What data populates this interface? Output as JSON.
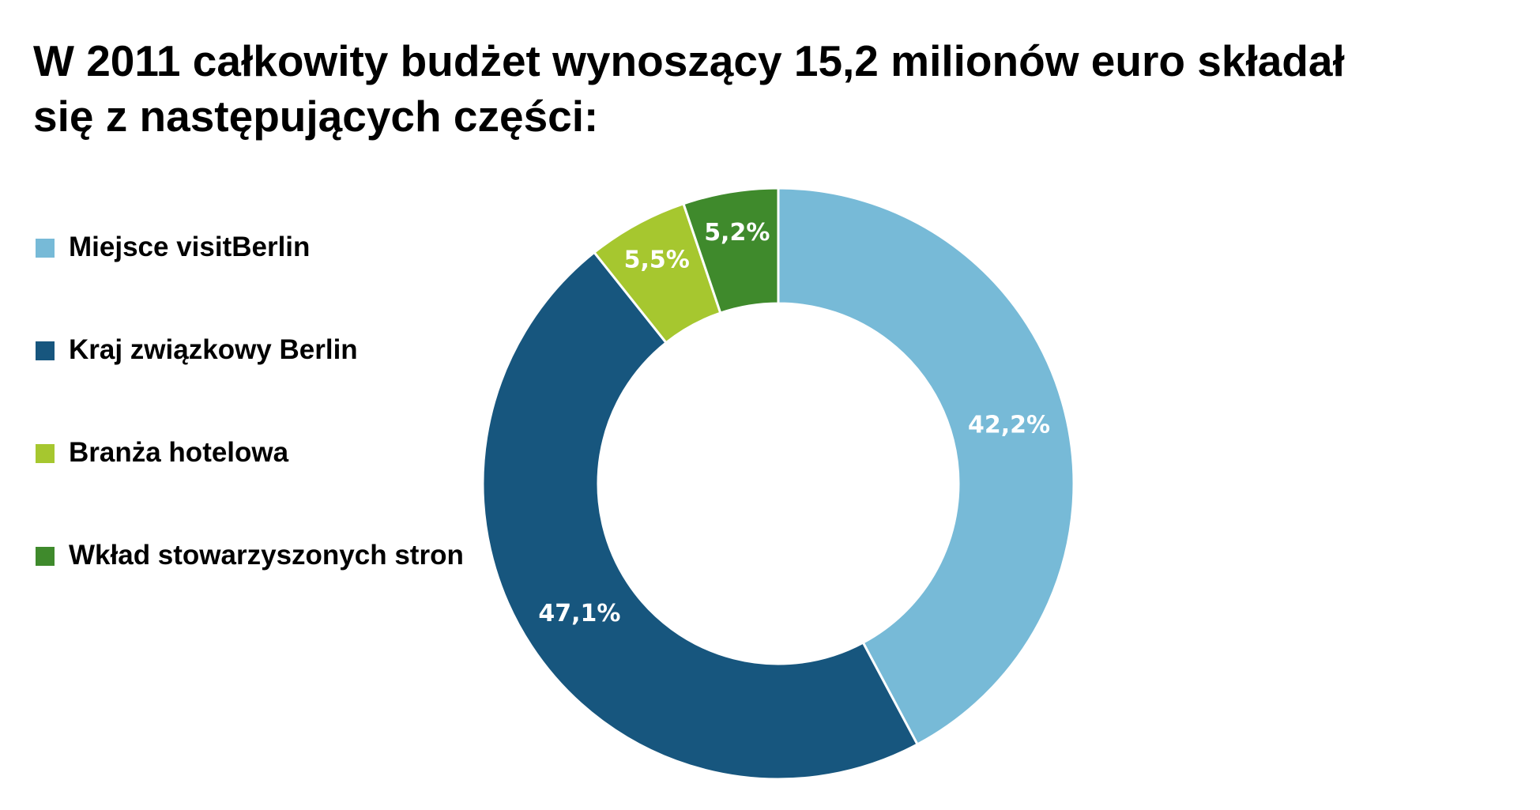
{
  "chart_data": {
    "type": "donut",
    "title": "W 2011 całkowity budżet wynoszący 15,2 milionów euro składał się z następujących części:",
    "categories": [
      "Miejsce visitBerlin",
      "Kraj związkowy Berlin",
      "Branża hotelowa",
      "Wkład stowarzyszonych stron"
    ],
    "values": [
      42.2,
      47.1,
      5.5,
      5.2
    ],
    "value_labels": [
      "42,2%",
      "47,1%",
      "5,5%",
      "5,2%"
    ],
    "colors": [
      "#77bad7",
      "#17567e",
      "#a6c72f",
      "#3f8a2c"
    ],
    "legend": "left"
  }
}
